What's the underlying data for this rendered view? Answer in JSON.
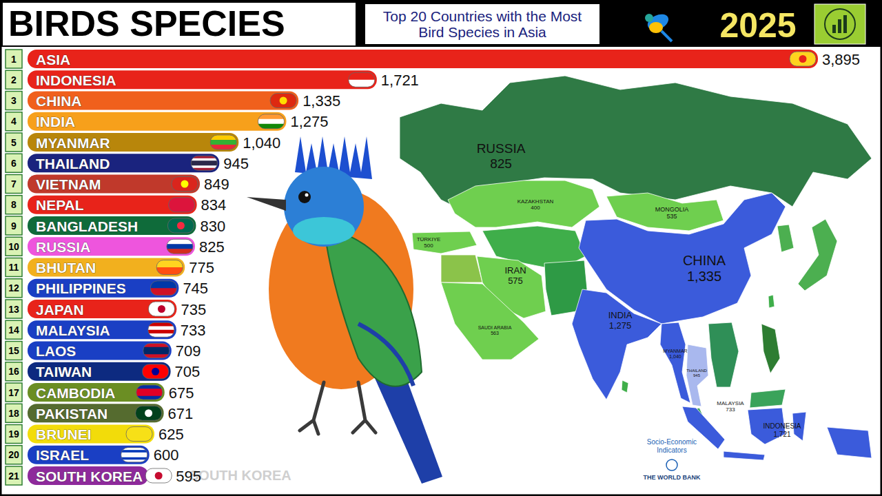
{
  "chart_data": {
    "type": "bar",
    "orientation": "horizontal",
    "title": "BIRDS SPECIES",
    "subtitle": "Top 20 Countries with the Most Bird Species in Asia",
    "categories": [
      "ASIA",
      "INDONESIA",
      "CHINA",
      "INDIA",
      "MYANMAR",
      "THAILAND",
      "VIETNAM",
      "NEPAL",
      "BANGLADESH",
      "RUSSIA",
      "BHUTAN",
      "PHILIPPINES",
      "JAPAN",
      "MALAYSIA",
      "LAOS",
      "TAIWAN",
      "CAMBODIA",
      "PAKISTAN",
      "BRUNEI",
      "ISRAEL",
      "SOUTH KOREA"
    ],
    "values": [
      3895,
      1721,
      1335,
      1275,
      1040,
      945,
      849,
      834,
      830,
      825,
      775,
      745,
      735,
      733,
      709,
      705,
      675,
      671,
      625,
      600,
      595
    ],
    "value_labels": [
      "3,895",
      "1,721",
      "1,335",
      "1,275",
      "1,040",
      "945",
      "849",
      "834",
      "830",
      "825",
      "775",
      "745",
      "735",
      "733",
      "709",
      "705",
      "675",
      "671",
      "625",
      "600",
      "595"
    ],
    "colors": [
      "#e8231a",
      "#e8231a",
      "#f0601c",
      "#f7a01b",
      "#b8860b",
      "#1a237e",
      "#c0392b",
      "#e8231a",
      "#0f6b3a",
      "#ee55dd",
      "#f2b01e",
      "#1a3fc4",
      "#e8231a",
      "#1a3fc4",
      "#1a3fc4",
      "#0d2a80",
      "#6b8e23",
      "#556b2f",
      "#f2dc0a",
      "#1a3fc4",
      "#8e2a9b"
    ],
    "xlim": [
      0,
      3895
    ],
    "data_labels": true,
    "tick_labels": false
  },
  "ranks": [
    1,
    2,
    3,
    4,
    5,
    6,
    7,
    8,
    9,
    10,
    11,
    12,
    13,
    14,
    15,
    16,
    17,
    18,
    19,
    20,
    21
  ],
  "year": "2025",
  "watermark": "SOUTH KOREA",
  "map": {
    "regions": [
      {
        "name": "RUSSIA",
        "value": 825,
        "label": "825"
      },
      {
        "name": "CHINA",
        "value": 1335,
        "label": "1,335"
      },
      {
        "name": "INDIA",
        "value": 1275,
        "label": "1,275"
      },
      {
        "name": "KAZAKHSTAN",
        "value": 400,
        "label": "400"
      },
      {
        "name": "MONGOLIA",
        "value": 535,
        "label": "535"
      },
      {
        "name": "TÜRKIYE",
        "value": 500,
        "label": "500"
      },
      {
        "name": "IRAN",
        "value": 575,
        "label": "575"
      },
      {
        "name": "SAUDI ARABIA",
        "value": 563,
        "label": "563"
      },
      {
        "name": "MYANMAR",
        "value": 1040,
        "label": "1,040"
      },
      {
        "name": "THAILAND",
        "value": 945,
        "label": "945"
      },
      {
        "name": "MALAYSIA",
        "value": 733,
        "label": "733"
      },
      {
        "name": "INDONESIA",
        "value": 1721,
        "label": "1,721"
      }
    ]
  },
  "source": {
    "lines": [
      "Socio-Economic",
      "Indicators"
    ],
    "org": "THE WORLD BANK"
  }
}
